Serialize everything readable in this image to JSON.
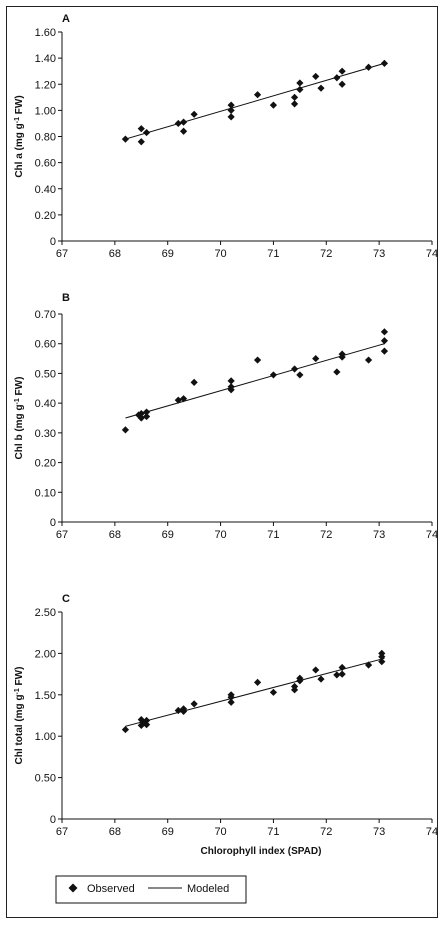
{
  "chart_data": [
    {
      "type": "scatter",
      "panel_label": "A",
      "ylabel_main": "Chl a (mg g",
      "ylabel_sup": "-1",
      "ylabel_end": " FW)",
      "xlim": [
        67,
        74
      ],
      "ylim": [
        0,
        1.6
      ],
      "x_ticks": [
        "67",
        "68",
        "69",
        "70",
        "71",
        "72",
        "73",
        "74"
      ],
      "y_ticks": [
        "0",
        "0.20",
        "0.40",
        "0.60",
        "0.80",
        "1.00",
        "1.20",
        "1.40",
        "1.60"
      ],
      "grid": false,
      "series": [
        {
          "name": "Observed",
          "points": [
            [
              68.2,
              0.78
            ],
            [
              68.5,
              0.86
            ],
            [
              68.5,
              0.76
            ],
            [
              68.6,
              0.83
            ],
            [
              69.2,
              0.9
            ],
            [
              69.3,
              0.84
            ],
            [
              69.3,
              0.91
            ],
            [
              69.5,
              0.97
            ],
            [
              70.2,
              1.04
            ],
            [
              70.2,
              1.0
            ],
            [
              70.2,
              0.95
            ],
            [
              70.7,
              1.12
            ],
            [
              71.0,
              1.04
            ],
            [
              71.4,
              1.05
            ],
            [
              71.4,
              1.1
            ],
            [
              71.5,
              1.16
            ],
            [
              71.5,
              1.21
            ],
            [
              71.8,
              1.26
            ],
            [
              71.9,
              1.17
            ],
            [
              72.2,
              1.25
            ],
            [
              72.3,
              1.3
            ],
            [
              72.3,
              1.2
            ],
            [
              72.8,
              1.33
            ],
            [
              73.1,
              1.36
            ]
          ]
        },
        {
          "name": "Modeled",
          "line": [
            [
              68.2,
              0.78
            ],
            [
              73.1,
              1.36
            ]
          ]
        }
      ]
    },
    {
      "type": "scatter",
      "panel_label": "B",
      "ylabel_main": "Chl b (mg g",
      "ylabel_sup": "-1",
      "ylabel_end": " FW)",
      "xlim": [
        67,
        74
      ],
      "ylim": [
        0,
        0.7
      ],
      "x_ticks": [
        "67",
        "68",
        "69",
        "70",
        "71",
        "72",
        "73",
        "74"
      ],
      "y_ticks": [
        "0",
        "0.10",
        "0.20",
        "0.30",
        "0.40",
        "0.50",
        "0.60",
        "0.70"
      ],
      "grid": false,
      "series": [
        {
          "name": "Observed",
          "points": [
            [
              68.2,
              0.31
            ],
            [
              68.45,
              0.36
            ],
            [
              68.5,
              0.35
            ],
            [
              68.6,
              0.37
            ],
            [
              68.6,
              0.355
            ],
            [
              68.5,
              0.365
            ],
            [
              69.2,
              0.41
            ],
            [
              69.3,
              0.415
            ],
            [
              69.5,
              0.47
            ],
            [
              70.2,
              0.475
            ],
            [
              70.2,
              0.455
            ],
            [
              70.2,
              0.445
            ],
            [
              70.7,
              0.545
            ],
            [
              71.0,
              0.495
            ],
            [
              71.4,
              0.515
            ],
            [
              71.5,
              0.495
            ],
            [
              71.8,
              0.55
            ],
            [
              72.2,
              0.505
            ],
            [
              72.3,
              0.565
            ],
            [
              72.3,
              0.555
            ],
            [
              72.8,
              0.545
            ],
            [
              73.1,
              0.64
            ],
            [
              73.1,
              0.61
            ],
            [
              73.1,
              0.575
            ]
          ]
        },
        {
          "name": "Modeled",
          "line": [
            [
              68.2,
              0.35
            ],
            [
              73.1,
              0.6
            ]
          ]
        }
      ]
    },
    {
      "type": "scatter",
      "panel_label": "C",
      "ylabel_main": "Chl total (mg g",
      "ylabel_sup": "-1",
      "ylabel_end": " FW)",
      "xlim": [
        67,
        74
      ],
      "ylim": [
        0,
        2.5
      ],
      "x_ticks": [
        "67",
        "68",
        "69",
        "70",
        "71",
        "72",
        "73",
        "74"
      ],
      "y_ticks": [
        "0",
        "0.50",
        "1.00",
        "1.50",
        "2.00",
        "2.50"
      ],
      "xlabel": "Chlorophyll index (SPAD)",
      "grid": false,
      "series": [
        {
          "name": "Observed",
          "points": [
            [
              68.2,
              1.08
            ],
            [
              68.5,
              1.2
            ],
            [
              68.5,
              1.13
            ],
            [
              68.55,
              1.16
            ],
            [
              68.6,
              1.19
            ],
            [
              68.6,
              1.14
            ],
            [
              69.2,
              1.31
            ],
            [
              69.3,
              1.3
            ],
            [
              69.3,
              1.33
            ],
            [
              69.5,
              1.39
            ],
            [
              70.2,
              1.5
            ],
            [
              70.2,
              1.47
            ],
            [
              70.2,
              1.41
            ],
            [
              70.7,
              1.65
            ],
            [
              71.0,
              1.53
            ],
            [
              71.4,
              1.56
            ],
            [
              71.4,
              1.6
            ],
            [
              71.5,
              1.67
            ],
            [
              71.5,
              1.7
            ],
            [
              71.8,
              1.8
            ],
            [
              71.9,
              1.69
            ],
            [
              72.2,
              1.74
            ],
            [
              72.3,
              1.83
            ],
            [
              72.3,
              1.75
            ],
            [
              72.8,
              1.86
            ],
            [
              73.05,
              2.0
            ],
            [
              73.05,
              1.96
            ],
            [
              73.05,
              1.9
            ]
          ]
        },
        {
          "name": "Modeled",
          "line": [
            [
              68.2,
              1.12
            ],
            [
              73.1,
              1.94
            ]
          ]
        }
      ]
    }
  ],
  "legend": {
    "observed_label": "Observed",
    "modeled_label": "Modeled"
  }
}
